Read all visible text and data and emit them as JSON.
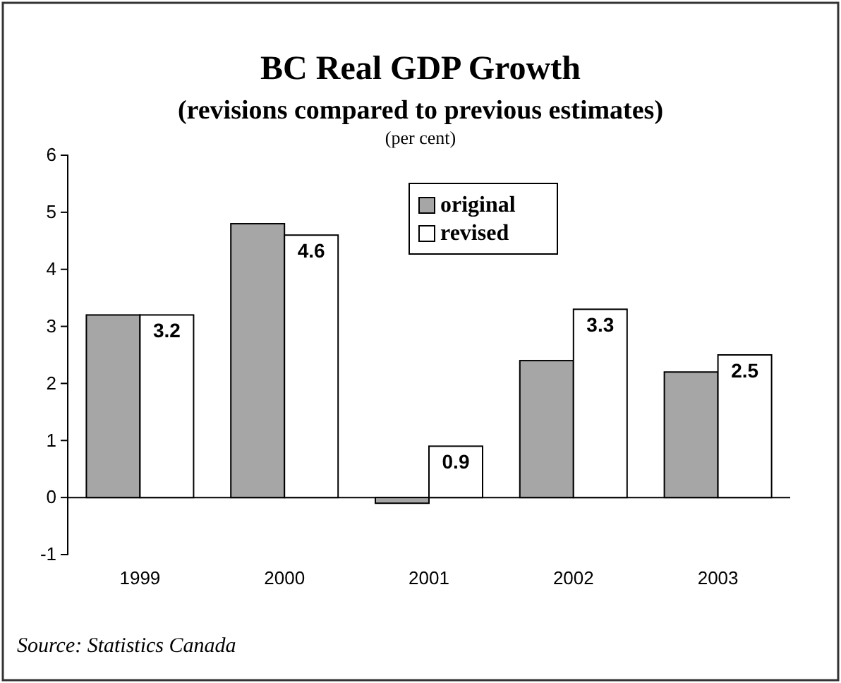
{
  "chart_data": {
    "type": "bar",
    "title": "BC Real GDP Growth",
    "subtitle": "(revisions compared to previous estimates)",
    "ylabel": "(per cent)",
    "categories": [
      "1999",
      "2000",
      "2001",
      "2002",
      "2003"
    ],
    "series": [
      {
        "name": "original",
        "color": "#a6a6a6",
        "values": [
          3.2,
          4.8,
          -0.1,
          2.4,
          2.2
        ]
      },
      {
        "name": "revised",
        "color": "#ffffff",
        "values": [
          3.2,
          4.6,
          0.9,
          3.3,
          2.5
        ],
        "value_labels": [
          "3.2",
          "4.6",
          "0.9",
          "3.3",
          "2.5"
        ]
      }
    ],
    "ylim": [
      -1,
      6
    ],
    "yticks": [
      -1,
      0,
      1,
      2,
      3,
      4,
      5,
      6
    ],
    "legend": "top",
    "annotations": [
      "Source: Statistics Canada"
    ]
  }
}
